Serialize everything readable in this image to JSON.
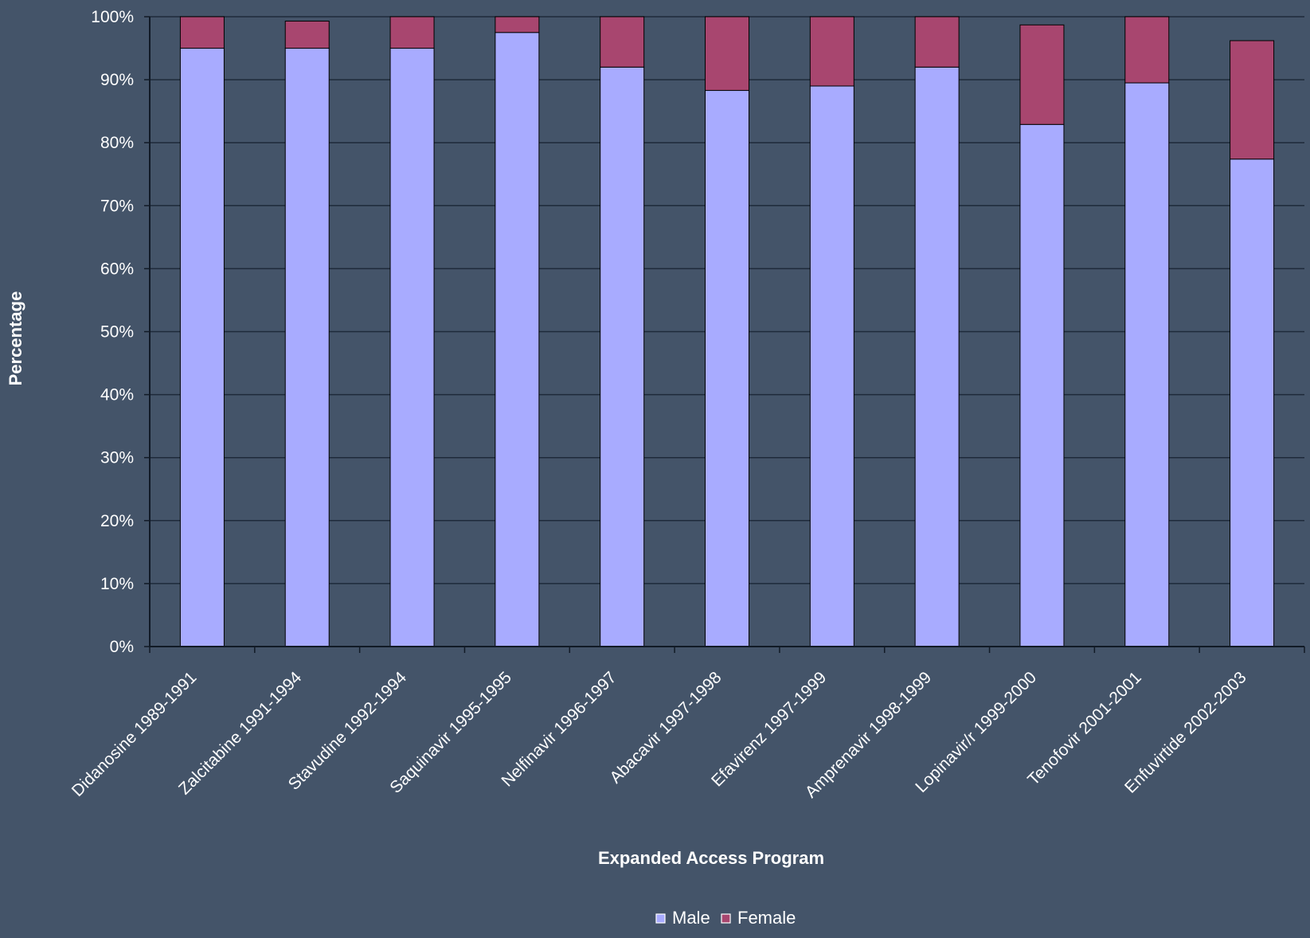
{
  "chart_data": {
    "type": "bar",
    "stacked": true,
    "title": "",
    "xlabel": "Expanded Access Program",
    "ylabel": "Percentage",
    "ylim": [
      0,
      100
    ],
    "yticks": [
      "0%",
      "10%",
      "20%",
      "30%",
      "40%",
      "50%",
      "60%",
      "70%",
      "80%",
      "90%",
      "100%"
    ],
    "categories": [
      "Didanosine  1989-1991",
      "Zalcitabine  1991-1994",
      "Stavudine  1992-1994",
      "Saquinavir  1995-1995",
      "Nelfinavir  1996-1997",
      "Abacavir  1997-1998",
      "Efavirenz  1997-1999",
      "Amprenavir  1998-1999",
      "Lopinavir/r  1999-2000",
      "Tenofovir  2001-2001",
      "Enfuvirtide  2002-2003"
    ],
    "series": [
      {
        "name": "Male",
        "color": "#a8abff",
        "values": [
          95,
          95,
          95,
          97.5,
          92,
          88.3,
          89,
          92,
          82.9,
          89.5,
          77.4
        ]
      },
      {
        "name": "Female",
        "color": "#a8466f",
        "values": [
          5,
          4.3,
          5,
          2.5,
          8,
          11.7,
          11,
          8,
          15.8,
          10.5,
          18.8
        ]
      }
    ],
    "grid": true,
    "legend_position": "bottom",
    "background_color": "#445469",
    "gridline_color": "#1e2a3a"
  }
}
